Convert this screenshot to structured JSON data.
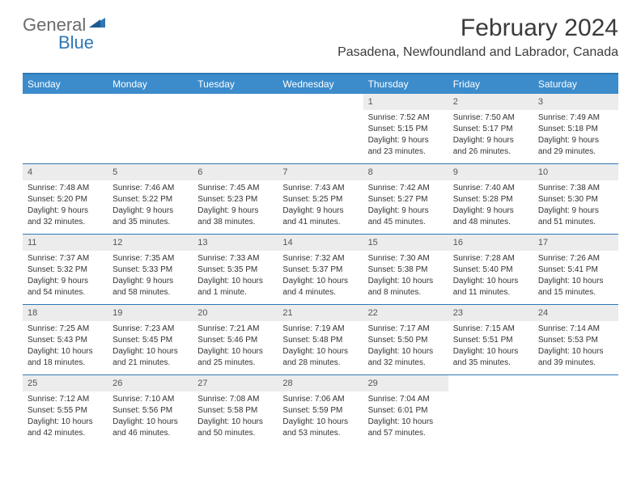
{
  "logo": {
    "text1": "General",
    "text2": "Blue"
  },
  "title": "February 2024",
  "location": "Pasadena, Newfoundland and Labrador, Canada",
  "colors": {
    "header_bar": "#3c8ccc",
    "border": "#2f77b5",
    "daynum_bg": "#ececec",
    "text": "#333333",
    "logo_gray": "#6b6b6b",
    "logo_blue": "#2f77b5"
  },
  "weekdays": [
    "Sunday",
    "Monday",
    "Tuesday",
    "Wednesday",
    "Thursday",
    "Friday",
    "Saturday"
  ],
  "weeks": [
    [
      {
        "empty": true
      },
      {
        "empty": true
      },
      {
        "empty": true
      },
      {
        "empty": true
      },
      {
        "num": "1",
        "sunrise": "Sunrise: 7:52 AM",
        "sunset": "Sunset: 5:15 PM",
        "day1": "Daylight: 9 hours",
        "day2": "and 23 minutes."
      },
      {
        "num": "2",
        "sunrise": "Sunrise: 7:50 AM",
        "sunset": "Sunset: 5:17 PM",
        "day1": "Daylight: 9 hours",
        "day2": "and 26 minutes."
      },
      {
        "num": "3",
        "sunrise": "Sunrise: 7:49 AM",
        "sunset": "Sunset: 5:18 PM",
        "day1": "Daylight: 9 hours",
        "day2": "and 29 minutes."
      }
    ],
    [
      {
        "num": "4",
        "sunrise": "Sunrise: 7:48 AM",
        "sunset": "Sunset: 5:20 PM",
        "day1": "Daylight: 9 hours",
        "day2": "and 32 minutes."
      },
      {
        "num": "5",
        "sunrise": "Sunrise: 7:46 AM",
        "sunset": "Sunset: 5:22 PM",
        "day1": "Daylight: 9 hours",
        "day2": "and 35 minutes."
      },
      {
        "num": "6",
        "sunrise": "Sunrise: 7:45 AM",
        "sunset": "Sunset: 5:23 PM",
        "day1": "Daylight: 9 hours",
        "day2": "and 38 minutes."
      },
      {
        "num": "7",
        "sunrise": "Sunrise: 7:43 AM",
        "sunset": "Sunset: 5:25 PM",
        "day1": "Daylight: 9 hours",
        "day2": "and 41 minutes."
      },
      {
        "num": "8",
        "sunrise": "Sunrise: 7:42 AM",
        "sunset": "Sunset: 5:27 PM",
        "day1": "Daylight: 9 hours",
        "day2": "and 45 minutes."
      },
      {
        "num": "9",
        "sunrise": "Sunrise: 7:40 AM",
        "sunset": "Sunset: 5:28 PM",
        "day1": "Daylight: 9 hours",
        "day2": "and 48 minutes."
      },
      {
        "num": "10",
        "sunrise": "Sunrise: 7:38 AM",
        "sunset": "Sunset: 5:30 PM",
        "day1": "Daylight: 9 hours",
        "day2": "and 51 minutes."
      }
    ],
    [
      {
        "num": "11",
        "sunrise": "Sunrise: 7:37 AM",
        "sunset": "Sunset: 5:32 PM",
        "day1": "Daylight: 9 hours",
        "day2": "and 54 minutes."
      },
      {
        "num": "12",
        "sunrise": "Sunrise: 7:35 AM",
        "sunset": "Sunset: 5:33 PM",
        "day1": "Daylight: 9 hours",
        "day2": "and 58 minutes."
      },
      {
        "num": "13",
        "sunrise": "Sunrise: 7:33 AM",
        "sunset": "Sunset: 5:35 PM",
        "day1": "Daylight: 10 hours",
        "day2": "and 1 minute."
      },
      {
        "num": "14",
        "sunrise": "Sunrise: 7:32 AM",
        "sunset": "Sunset: 5:37 PM",
        "day1": "Daylight: 10 hours",
        "day2": "and 4 minutes."
      },
      {
        "num": "15",
        "sunrise": "Sunrise: 7:30 AM",
        "sunset": "Sunset: 5:38 PM",
        "day1": "Daylight: 10 hours",
        "day2": "and 8 minutes."
      },
      {
        "num": "16",
        "sunrise": "Sunrise: 7:28 AM",
        "sunset": "Sunset: 5:40 PM",
        "day1": "Daylight: 10 hours",
        "day2": "and 11 minutes."
      },
      {
        "num": "17",
        "sunrise": "Sunrise: 7:26 AM",
        "sunset": "Sunset: 5:41 PM",
        "day1": "Daylight: 10 hours",
        "day2": "and 15 minutes."
      }
    ],
    [
      {
        "num": "18",
        "sunrise": "Sunrise: 7:25 AM",
        "sunset": "Sunset: 5:43 PM",
        "day1": "Daylight: 10 hours",
        "day2": "and 18 minutes."
      },
      {
        "num": "19",
        "sunrise": "Sunrise: 7:23 AM",
        "sunset": "Sunset: 5:45 PM",
        "day1": "Daylight: 10 hours",
        "day2": "and 21 minutes."
      },
      {
        "num": "20",
        "sunrise": "Sunrise: 7:21 AM",
        "sunset": "Sunset: 5:46 PM",
        "day1": "Daylight: 10 hours",
        "day2": "and 25 minutes."
      },
      {
        "num": "21",
        "sunrise": "Sunrise: 7:19 AM",
        "sunset": "Sunset: 5:48 PM",
        "day1": "Daylight: 10 hours",
        "day2": "and 28 minutes."
      },
      {
        "num": "22",
        "sunrise": "Sunrise: 7:17 AM",
        "sunset": "Sunset: 5:50 PM",
        "day1": "Daylight: 10 hours",
        "day2": "and 32 minutes."
      },
      {
        "num": "23",
        "sunrise": "Sunrise: 7:15 AM",
        "sunset": "Sunset: 5:51 PM",
        "day1": "Daylight: 10 hours",
        "day2": "and 35 minutes."
      },
      {
        "num": "24",
        "sunrise": "Sunrise: 7:14 AM",
        "sunset": "Sunset: 5:53 PM",
        "day1": "Daylight: 10 hours",
        "day2": "and 39 minutes."
      }
    ],
    [
      {
        "num": "25",
        "sunrise": "Sunrise: 7:12 AM",
        "sunset": "Sunset: 5:55 PM",
        "day1": "Daylight: 10 hours",
        "day2": "and 42 minutes."
      },
      {
        "num": "26",
        "sunrise": "Sunrise: 7:10 AM",
        "sunset": "Sunset: 5:56 PM",
        "day1": "Daylight: 10 hours",
        "day2": "and 46 minutes."
      },
      {
        "num": "27",
        "sunrise": "Sunrise: 7:08 AM",
        "sunset": "Sunset: 5:58 PM",
        "day1": "Daylight: 10 hours",
        "day2": "and 50 minutes."
      },
      {
        "num": "28",
        "sunrise": "Sunrise: 7:06 AM",
        "sunset": "Sunset: 5:59 PM",
        "day1": "Daylight: 10 hours",
        "day2": "and 53 minutes."
      },
      {
        "num": "29",
        "sunrise": "Sunrise: 7:04 AM",
        "sunset": "Sunset: 6:01 PM",
        "day1": "Daylight: 10 hours",
        "day2": "and 57 minutes."
      },
      {
        "empty": true
      },
      {
        "empty": true
      }
    ]
  ]
}
